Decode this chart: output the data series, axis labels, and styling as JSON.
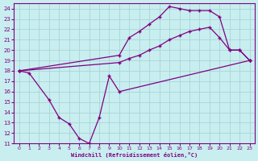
{
  "xlabel": "Windchill (Refroidissement éolien,°C)",
  "bg_color": "#c8eef0",
  "line_color": "#800080",
  "grid_color": "#aad4d8",
  "xlim": [
    -0.5,
    23.5
  ],
  "ylim": [
    11,
    24.5
  ],
  "xticks": [
    0,
    1,
    2,
    3,
    4,
    5,
    6,
    7,
    8,
    9,
    10,
    11,
    12,
    13,
    14,
    15,
    16,
    17,
    18,
    19,
    20,
    21,
    22,
    23
  ],
  "yticks": [
    11,
    12,
    13,
    14,
    15,
    16,
    17,
    18,
    19,
    20,
    21,
    22,
    23,
    24
  ],
  "line1_x": [
    0,
    1,
    3,
    4,
    5,
    6,
    7,
    8,
    9,
    10,
    23
  ],
  "line1_y": [
    18,
    17.8,
    15.2,
    13.5,
    12.9,
    11.5,
    11.0,
    13.5,
    17.5,
    16.0,
    19.0
  ],
  "line2_x": [
    0,
    10,
    11,
    12,
    13,
    14,
    15,
    16,
    17,
    18,
    19,
    20,
    21,
    22,
    23
  ],
  "line2_y": [
    18,
    18.8,
    19.2,
    19.5,
    20.0,
    20.4,
    21.0,
    21.4,
    21.8,
    22.0,
    22.2,
    21.2,
    20.0,
    20.0,
    19.0
  ],
  "line3_x": [
    0,
    10,
    11,
    12,
    13,
    14,
    15,
    16,
    17,
    18,
    19,
    20,
    21,
    22,
    23
  ],
  "line3_y": [
    18,
    19.5,
    21.2,
    21.8,
    22.5,
    23.2,
    24.2,
    24.0,
    23.8,
    23.8,
    23.8,
    23.2,
    20.0,
    20.0,
    19.0
  ]
}
